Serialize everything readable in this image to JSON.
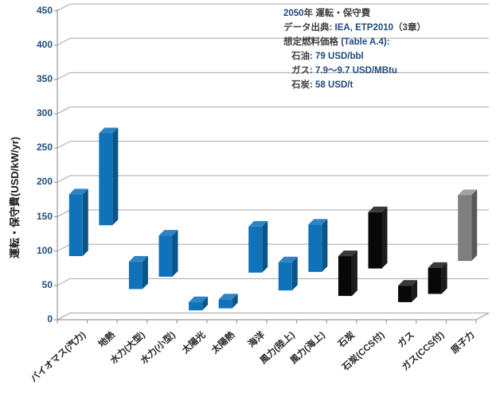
{
  "chart_data": {
    "type": "bar",
    "subtype": "floating-range-3d-column",
    "ylabel": "運転・保守費(USD/kW/yr)",
    "xlabel": "",
    "ylim": [
      0,
      450
    ],
    "yticks": [
      0,
      50,
      100,
      150,
      200,
      250,
      300,
      350,
      400,
      450
    ],
    "grid": "horizontal",
    "legend_position": "none",
    "categories": [
      "バイオマス(汽力)",
      "地熱",
      "水力(大型)",
      "水力(小型)",
      "太陽光",
      "太陽熱",
      "海洋",
      "風力(陸上)",
      "風力(海上)",
      "石炭",
      "石炭(CCS付)",
      "ガス",
      "ガス(CCS付)",
      "原子力"
    ],
    "bars": [
      {
        "key": "biomass-steam",
        "label": "バイオマス(汽力)",
        "min": 88,
        "max": 178,
        "color": "blue"
      },
      {
        "key": "geothermal",
        "label": "地熱",
        "min": 133,
        "max": 267,
        "color": "blue"
      },
      {
        "key": "hydro-large",
        "label": "水力(大型)",
        "min": 40,
        "max": 80,
        "color": "blue"
      },
      {
        "key": "hydro-small",
        "label": "水力(小型)",
        "min": 58,
        "max": 118,
        "color": "blue"
      },
      {
        "key": "solar-pv",
        "label": "太陽光",
        "min": 9,
        "max": 21,
        "color": "blue"
      },
      {
        "key": "solar-thermal",
        "label": "太陽熱",
        "min": 12,
        "max": 25,
        "color": "blue"
      },
      {
        "key": "ocean",
        "label": "海洋",
        "min": 64,
        "max": 131,
        "color": "blue"
      },
      {
        "key": "wind-onshore",
        "label": "風力(陸上)",
        "min": 38,
        "max": 79,
        "color": "blue"
      },
      {
        "key": "wind-offshore",
        "label": "風力(海上)",
        "min": 65,
        "max": 134,
        "color": "blue"
      },
      {
        "key": "coal",
        "label": "石炭",
        "min": 30,
        "max": 88,
        "color": "black"
      },
      {
        "key": "coal-ccs",
        "label": "石炭(CCS付)",
        "min": 70,
        "max": 152,
        "color": "black"
      },
      {
        "key": "gas",
        "label": "ガス",
        "min": 21,
        "max": 45,
        "color": "black"
      },
      {
        "key": "gas-ccs",
        "label": "ガス(CCS付)",
        "min": 33,
        "max": 71,
        "color": "black"
      },
      {
        "key": "nuclear",
        "label": "原子力",
        "min": 81,
        "max": 177,
        "color": "gray"
      }
    ],
    "bar_colors": {
      "blue": {
        "front": "#1072B8",
        "top": "#2E83C4",
        "side": "#0A5587"
      },
      "black": {
        "front": "#080808",
        "top": "#3A3A3A",
        "side": "#1C1C1C"
      },
      "gray": {
        "front": "#7F7F7F",
        "top": "#A3A3A3",
        "side": "#595959"
      }
    },
    "axis_colors": {
      "gridline": "#A6A6A6",
      "axis_line": "#9A9A9A",
      "y_tick_labels": "#1F4E79",
      "x_tick_labels": "#262626",
      "y_title": "#1A1A1A"
    }
  },
  "annotation": {
    "lines": [
      {
        "indent": false,
        "segments": [
          {
            "text": "2050",
            "accent": true
          },
          {
            "text": "年 運転・保守費",
            "accent": false
          }
        ]
      },
      {
        "indent": false,
        "segments": [
          {
            "text": "データ出典",
            "accent": false
          },
          {
            "text": ": IEA, ETP2010",
            "accent": true
          },
          {
            "text": "（3章）",
            "accent": false
          }
        ]
      },
      {
        "indent": false,
        "segments": [
          {
            "text": "想定燃料価格 ",
            "accent": false
          },
          {
            "text": "(Table A.4):",
            "accent": true
          }
        ]
      },
      {
        "indent": true,
        "segments": [
          {
            "text": "石油",
            "accent": false
          },
          {
            "text": ": 79 USD/bbl",
            "accent": true
          }
        ]
      },
      {
        "indent": true,
        "segments": [
          {
            "text": "ガス",
            "accent": false
          },
          {
            "text": ": 7.9～9.7 USD/MBtu",
            "accent": true
          }
        ]
      },
      {
        "indent": true,
        "segments": [
          {
            "text": "石炭",
            "accent": false
          },
          {
            "text": ": 58 USD/t",
            "accent": true
          }
        ]
      }
    ]
  }
}
